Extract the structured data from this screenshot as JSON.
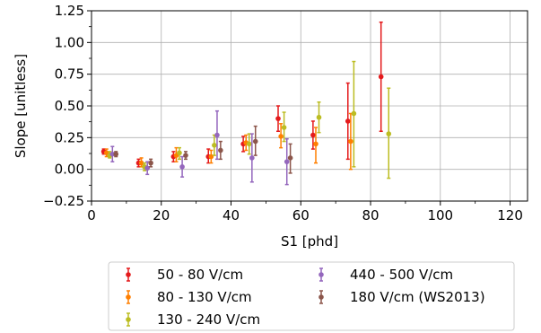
{
  "chart_data": {
    "type": "scatter",
    "xlabel": "S1 [phd]",
    "ylabel": "Slope [unitless]",
    "xlim": [
      0,
      125
    ],
    "ylim": [
      -0.25,
      1.25
    ],
    "xticks": [
      0,
      20,
      40,
      60,
      80,
      100,
      120
    ],
    "yticks": [
      -0.25,
      0.0,
      0.25,
      0.5,
      0.75,
      1.0,
      1.25
    ],
    "ytick_labels": [
      "−0.25",
      "0.00",
      "0.25",
      "0.50",
      "0.75",
      "1.00",
      "1.25"
    ],
    "grid": true,
    "legend_position": "below",
    "series": [
      {
        "name": "50 - 80 V/cm",
        "color": "#e41a1c",
        "points": [
          {
            "x": 3.5,
            "y": 0.14,
            "lo": 0.12,
            "hi": 0.16
          },
          {
            "x": 13.5,
            "y": 0.05,
            "lo": 0.02,
            "hi": 0.08
          },
          {
            "x": 23.5,
            "y": 0.1,
            "lo": 0.06,
            "hi": 0.14
          },
          {
            "x": 33.5,
            "y": 0.1,
            "lo": 0.05,
            "hi": 0.16
          },
          {
            "x": 43.5,
            "y": 0.2,
            "lo": 0.14,
            "hi": 0.26
          },
          {
            "x": 53.5,
            "y": 0.4,
            "lo": 0.3,
            "hi": 0.5
          },
          {
            "x": 63.5,
            "y": 0.27,
            "lo": 0.16,
            "hi": 0.38
          },
          {
            "x": 73.5,
            "y": 0.38,
            "lo": 0.08,
            "hi": 0.68
          },
          {
            "x": 83.0,
            "y": 0.73,
            "lo": 0.3,
            "hi": 1.16
          }
        ]
      },
      {
        "name": "80 - 130 V/cm",
        "color": "#ff7f00",
        "points": [
          {
            "x": 4.3,
            "y": 0.13,
            "lo": 0.1,
            "hi": 0.16
          },
          {
            "x": 14.3,
            "y": 0.05,
            "lo": 0.02,
            "hi": 0.09
          },
          {
            "x": 24.3,
            "y": 0.11,
            "lo": 0.06,
            "hi": 0.17
          },
          {
            "x": 34.3,
            "y": 0.1,
            "lo": 0.05,
            "hi": 0.15
          },
          {
            "x": 44.3,
            "y": 0.21,
            "lo": 0.15,
            "hi": 0.27
          },
          {
            "x": 54.3,
            "y": 0.26,
            "lo": 0.17,
            "hi": 0.36
          },
          {
            "x": 64.3,
            "y": 0.2,
            "lo": 0.05,
            "hi": 0.33
          },
          {
            "x": 74.3,
            "y": 0.22,
            "lo": 0.0,
            "hi": 0.44
          }
        ]
      },
      {
        "name": "130 - 240 V/cm",
        "color": "#bcbd22",
        "points": [
          {
            "x": 5.2,
            "y": 0.11,
            "lo": 0.09,
            "hi": 0.14
          },
          {
            "x": 15.2,
            "y": 0.02,
            "lo": -0.01,
            "hi": 0.05
          },
          {
            "x": 25.2,
            "y": 0.13,
            "lo": 0.08,
            "hi": 0.17
          },
          {
            "x": 35.2,
            "y": 0.19,
            "lo": 0.11,
            "hi": 0.27
          },
          {
            "x": 45.2,
            "y": 0.2,
            "lo": 0.12,
            "hi": 0.28
          },
          {
            "x": 55.2,
            "y": 0.33,
            "lo": 0.22,
            "hi": 0.45
          },
          {
            "x": 65.2,
            "y": 0.41,
            "lo": 0.29,
            "hi": 0.53
          },
          {
            "x": 75.2,
            "y": 0.44,
            "lo": 0.02,
            "hi": 0.85
          },
          {
            "x": 85.2,
            "y": 0.28,
            "lo": -0.07,
            "hi": 0.64
          }
        ]
      },
      {
        "name": "440 - 500 V/cm",
        "color": "#9467bd",
        "points": [
          {
            "x": 6.0,
            "y": 0.12,
            "lo": 0.06,
            "hi": 0.18
          },
          {
            "x": 16.0,
            "y": 0.01,
            "lo": -0.04,
            "hi": 0.06
          },
          {
            "x": 26.0,
            "y": 0.02,
            "lo": -0.06,
            "hi": 0.1
          },
          {
            "x": 36.0,
            "y": 0.27,
            "lo": 0.08,
            "hi": 0.46
          },
          {
            "x": 46.0,
            "y": 0.09,
            "lo": -0.1,
            "hi": 0.28
          },
          {
            "x": 56.0,
            "y": 0.06,
            "lo": -0.12,
            "hi": 0.24
          }
        ]
      },
      {
        "name": "180 V/cm (WS2013)",
        "color": "#8c564b",
        "points": [
          {
            "x": 7.0,
            "y": 0.12,
            "lo": 0.1,
            "hi": 0.14
          },
          {
            "x": 17.0,
            "y": 0.05,
            "lo": 0.02,
            "hi": 0.08
          },
          {
            "x": 27.0,
            "y": 0.11,
            "lo": 0.08,
            "hi": 0.14
          },
          {
            "x": 37.0,
            "y": 0.15,
            "lo": 0.08,
            "hi": 0.22
          },
          {
            "x": 47.0,
            "y": 0.22,
            "lo": 0.11,
            "hi": 0.34
          },
          {
            "x": 57.0,
            "y": 0.09,
            "lo": -0.03,
            "hi": 0.2
          }
        ]
      }
    ]
  }
}
